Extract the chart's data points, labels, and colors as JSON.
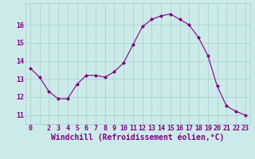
{
  "x": [
    0,
    1,
    2,
    3,
    4,
    5,
    6,
    7,
    8,
    9,
    10,
    11,
    12,
    13,
    14,
    15,
    16,
    17,
    18,
    19,
    20,
    21,
    22,
    23
  ],
  "y": [
    13.6,
    13.1,
    12.3,
    11.9,
    11.9,
    12.7,
    13.2,
    13.2,
    13.1,
    13.4,
    13.9,
    14.9,
    15.9,
    16.3,
    16.5,
    16.6,
    16.3,
    16.0,
    15.3,
    14.3,
    12.6,
    11.5,
    11.2,
    11.0
  ],
  "x_labels": [
    "0",
    "",
    "2",
    "3",
    "4",
    "5",
    "6",
    "7",
    "8",
    "9",
    "10",
    "11",
    "12",
    "13",
    "14",
    "15",
    "16",
    "17",
    "18",
    "19",
    "20",
    "21",
    "22",
    "23"
  ],
  "line_color": "#800080",
  "marker": "D",
  "marker_size": 2.0,
  "bg_color": "#cceaea",
  "grid_color": "#aacccc",
  "xlabel": "Windchill (Refroidissement éolien,°C)",
  "xlabel_color": "#800080",
  "xlabel_fontsize": 7.0,
  "tick_color": "#800080",
  "tick_fontsize": 6.0,
  "ylim": [
    10.5,
    17.2
  ],
  "yticks": [
    11,
    12,
    13,
    14,
    15,
    16
  ],
  "xlim": [
    -0.5,
    23.5
  ]
}
